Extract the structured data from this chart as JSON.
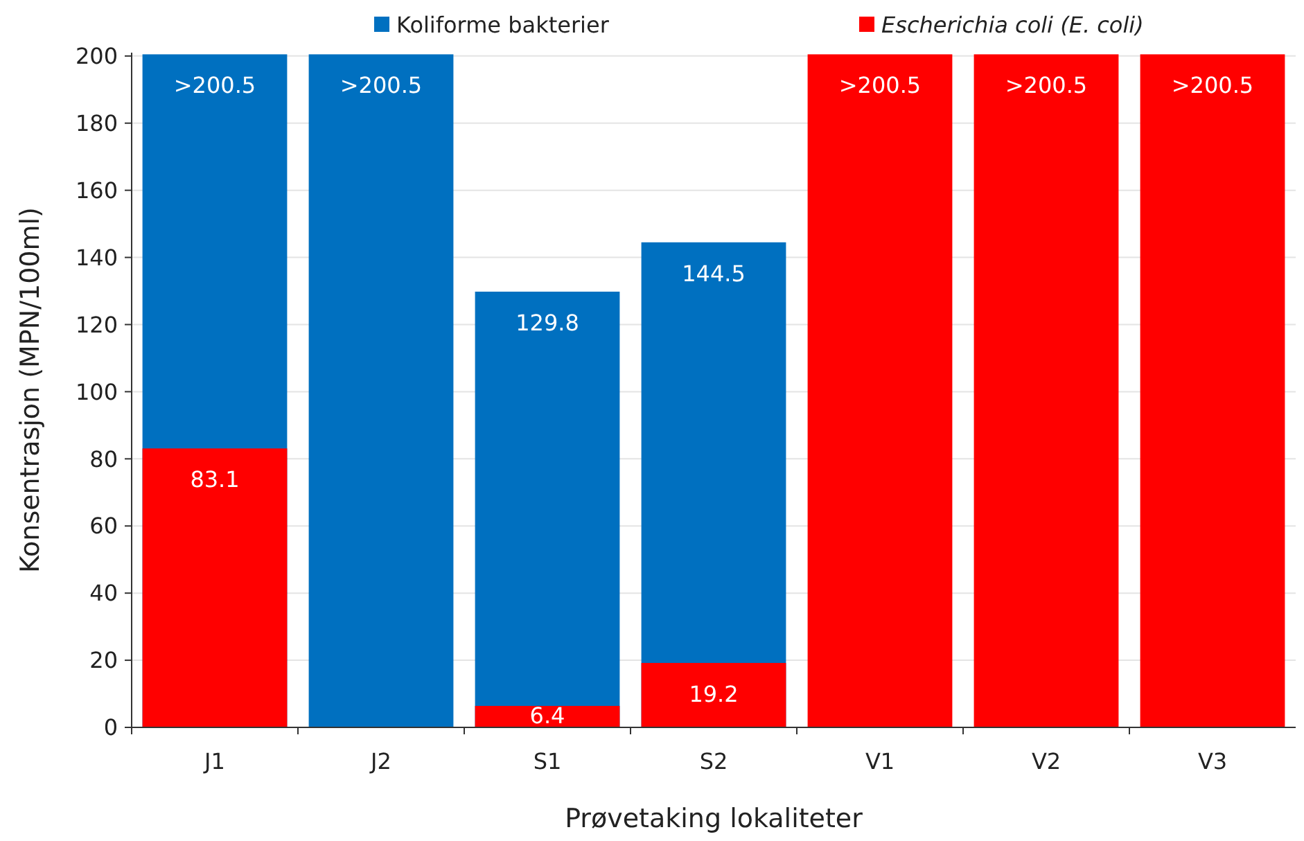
{
  "chart_data": {
    "type": "bar",
    "xlabel": "Prøvetaking lokaliteter",
    "ylabel": "Konsentrasjon (MPN/100ml)",
    "categories": [
      "J1",
      "J2",
      "S1",
      "S2",
      "V1",
      "V2",
      "V3"
    ],
    "series": [
      {
        "name": "Koliforme bakterier",
        "color": "#0070c0",
        "values": [
          200.5,
          200.5,
          129.8,
          144.5,
          null,
          null,
          null
        ],
        "value_labels": [
          ">200.5",
          ">200.5",
          "129.8",
          "144.5",
          null,
          null,
          null
        ]
      },
      {
        "name": "Escherichia coli (E. coli)",
        "color": "#ff0000",
        "values": [
          83.1,
          null,
          6.4,
          19.2,
          200.5,
          200.5,
          200.5
        ],
        "value_labels": [
          "83.1",
          null,
          "6.4",
          "19.2",
          ">200.5",
          ">200.5",
          ">200.5"
        ]
      }
    ],
    "ylim": [
      0,
      201
    ],
    "yticks": [
      0,
      20,
      40,
      60,
      80,
      100,
      120,
      140,
      160,
      180,
      200
    ],
    "grid": "y",
    "legend": "top"
  }
}
